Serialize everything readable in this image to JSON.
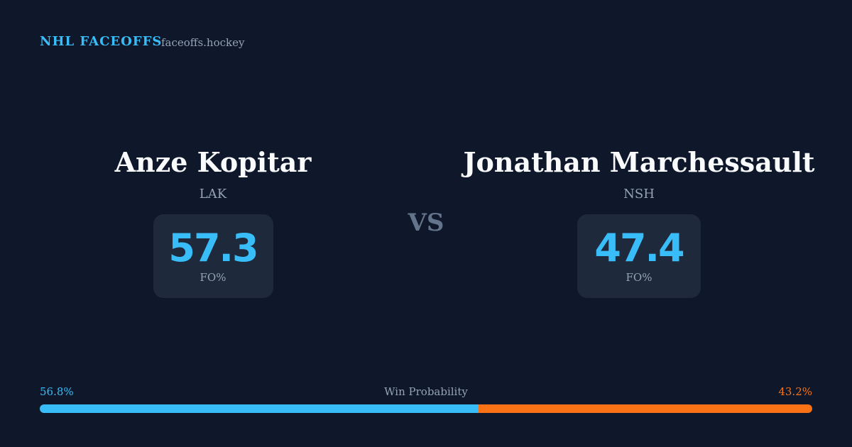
{
  "header": {
    "title": "NHL FACEOFFS",
    "site": "faceoffs.hockey"
  },
  "players": [
    {
      "name": "Anze Kopitar",
      "team": "LAK",
      "stat": 57.3,
      "stat_label": "FO%"
    },
    {
      "name": "Jonathan Marchessault",
      "team": "NSH",
      "stat": 47.4,
      "stat_label": "FO%"
    }
  ],
  "vs": "VS",
  "win_probability": {
    "title": "Win Probability",
    "left": {
      "value": 56.8,
      "label": "56.8%",
      "color": "#38bdf8"
    },
    "right": {
      "value": 43.2,
      "label": "43.2%",
      "color": "#f97316"
    }
  }
}
